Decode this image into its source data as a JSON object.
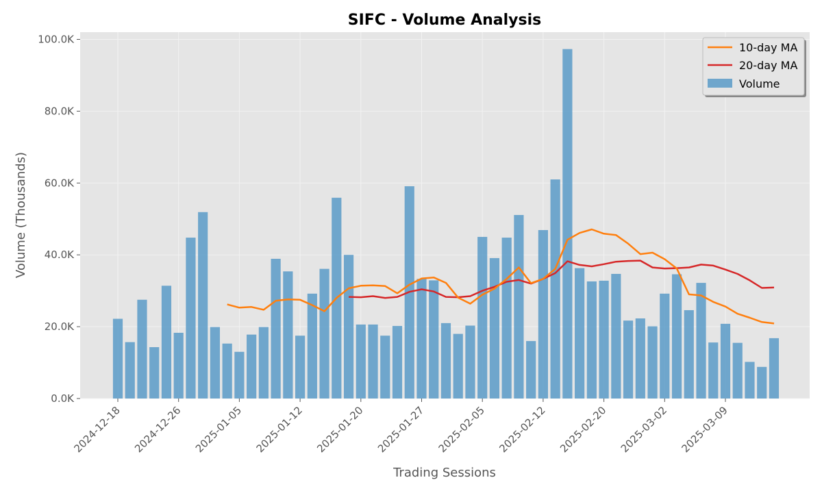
{
  "chart_data": {
    "type": "bar",
    "title": "SIFC - Volume Analysis",
    "xlabel": "Trading Sessions",
    "ylabel": "Volume (Thousands)",
    "ylim": [
      0,
      102000
    ],
    "y_ticks": [
      0,
      20000,
      40000,
      60000,
      80000,
      100000
    ],
    "y_tick_labels": [
      "0.0K",
      "20.0K",
      "40.0K",
      "60.0K",
      "80.0K",
      "100.0K"
    ],
    "x_tick_labels": [
      "2024-12-18",
      "2024-12-26",
      "2025-01-05",
      "2025-01-12",
      "2025-01-20",
      "2025-01-27",
      "2025-02-05",
      "2025-02-12",
      "2025-02-20",
      "2025-03-02",
      "2025-03-09"
    ],
    "x_tick_indices": [
      0,
      5,
      10,
      15,
      20,
      25,
      30,
      35,
      40,
      45,
      50
    ],
    "grid": true,
    "legend_position": "top-right",
    "colors": {
      "volume": "#5b9bc8",
      "ma10": "#ff7f0e",
      "ma20": "#d62728",
      "plot_bg": "#e5e5e5"
    },
    "legend": [
      "10-day MA",
      "20-day MA",
      "Volume"
    ],
    "series": [
      {
        "name": "Volume",
        "type": "bar",
        "values": [
          22200,
          15700,
          27500,
          14300,
          31400,
          18300,
          44800,
          51900,
          19900,
          15300,
          13000,
          17800,
          19900,
          38900,
          35400,
          17500,
          29200,
          36100,
          55900,
          40000,
          20600,
          20600,
          17500,
          20200,
          59100,
          33300,
          32900,
          21000,
          18000,
          20300,
          45000,
          39100,
          44800,
          51100,
          16000,
          46900,
          61000,
          97300,
          36300,
          32600,
          32800,
          34700,
          21700,
          22300,
          20100,
          29200,
          34600,
          24600,
          32200,
          15600,
          20800,
          15500,
          10200,
          8800,
          16800
        ]
      },
      {
        "name": "10-day MA",
        "type": "line",
        "values": [
          null,
          null,
          null,
          null,
          null,
          null,
          null,
          null,
          null,
          26200,
          25300,
          25500,
          24700,
          27200,
          27600,
          27500,
          26000,
          24300,
          28000,
          30700,
          31400,
          31500,
          31300,
          29300,
          31700,
          33400,
          33700,
          32200,
          28100,
          26400,
          28900,
          30600,
          33300,
          36500,
          32100,
          33300,
          36100,
          44200,
          46100,
          47100,
          45900,
          45500,
          43100,
          40200,
          40600,
          38800,
          36200,
          29000,
          28700,
          26900,
          25600,
          23600,
          22500,
          21300,
          20900
        ]
      },
      {
        "name": "20-day MA",
        "type": "line",
        "values": [
          null,
          null,
          null,
          null,
          null,
          null,
          null,
          null,
          null,
          null,
          null,
          null,
          null,
          null,
          null,
          null,
          null,
          null,
          null,
          28300,
          28200,
          28500,
          28000,
          28300,
          29700,
          30400,
          29800,
          28300,
          28200,
          28500,
          30000,
          31100,
          32500,
          33000,
          32000,
          33300,
          34900,
          38200,
          37200,
          36800,
          37400,
          38100,
          38300,
          38400,
          36500,
          36200,
          36300,
          36500,
          37300,
          37000,
          35900,
          34700,
          32900,
          30800,
          30900
        ]
      }
    ]
  }
}
